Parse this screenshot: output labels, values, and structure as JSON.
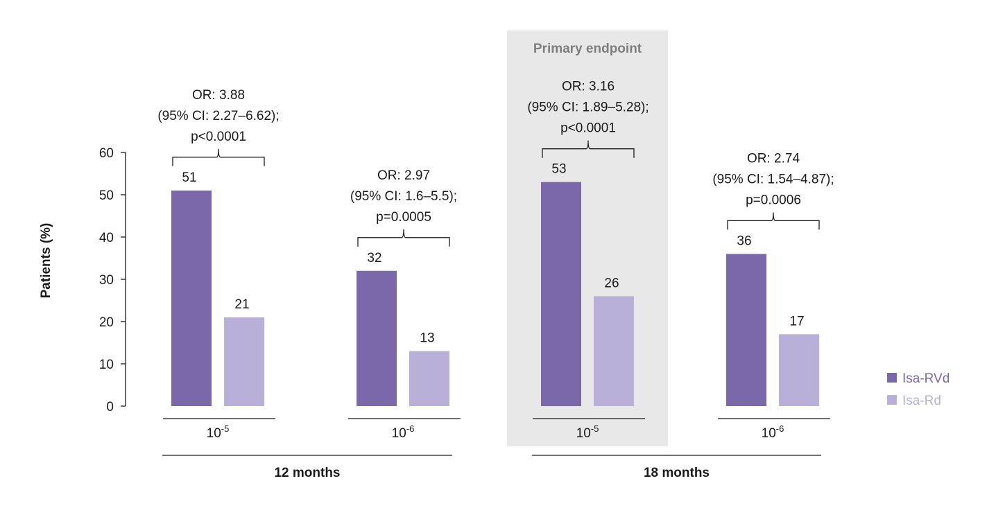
{
  "chart_data": {
    "type": "bar",
    "title": "",
    "ylabel": "Patients (%)",
    "ylim": [
      0,
      60
    ],
    "yticks": [
      0,
      10,
      20,
      30,
      40,
      50,
      60
    ],
    "series": [
      {
        "name": "Isa-RVd",
        "color": "#7b68ab"
      },
      {
        "name": "Isa-Rd",
        "color": "#b9b0da"
      }
    ],
    "timepoints": [
      {
        "label": "12 months",
        "clusters": [
          0,
          1
        ]
      },
      {
        "label": "18 months",
        "clusters": [
          2,
          3
        ]
      }
    ],
    "clusters": [
      {
        "category_base": "10",
        "category_exp": "-5",
        "values": [
          51,
          21
        ],
        "or_lines": [
          "OR: 3.88",
          "(95% CI: 2.27–6.62);",
          "p<0.0001"
        ]
      },
      {
        "category_base": "10",
        "category_exp": "-6",
        "values": [
          32,
          13
        ],
        "or_lines": [
          "OR: 2.97",
          "(95% CI: 1.6–5.5);",
          "p=0.0005"
        ]
      },
      {
        "category_base": "10",
        "category_exp": "-5",
        "values": [
          53,
          26
        ],
        "or_lines": [
          "OR: 3.16",
          "(95% CI: 1.89–5.28);",
          "p<0.0001"
        ],
        "highlight_label": "Primary endpoint"
      },
      {
        "category_base": "10",
        "category_exp": "-6",
        "values": [
          36,
          17
        ],
        "or_lines": [
          "OR: 2.74",
          "(95% CI: 1.54–4.87);",
          "p=0.0006"
        ]
      }
    ],
    "legend": [
      {
        "label": "Isa-RVd",
        "color": "#7b68ab"
      },
      {
        "label": "Isa-Rd",
        "color": "#b9b0da"
      }
    ],
    "legend_position": "right"
  }
}
